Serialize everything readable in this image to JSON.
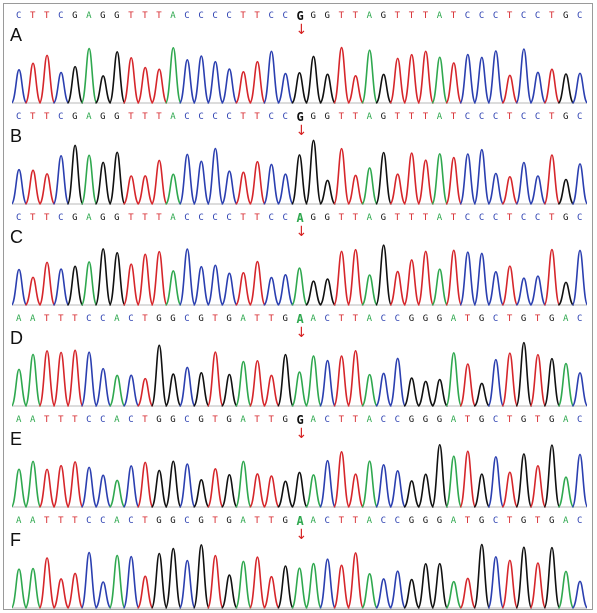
{
  "colors": {
    "A": "#2fa84f",
    "C": "#2b3fb0",
    "G": "#111111",
    "T": "#d6262b",
    "arrow": "#d62020",
    "baseline": "#b9b9b9"
  },
  "arrow_icon": "down-arrow",
  "arrow_glyph": "↓",
  "panels": [
    {
      "label": "A",
      "sequence": "CTTCGAGGTTTACCCCTTCCGGGTTAGTTTATCCCTCCTGC",
      "mutation_index": 20
    },
    {
      "label": "B",
      "sequence": "CTTCGAGGTTTACCCCTTCCGGGTTAGTTTATCCCTCCTGC",
      "mutation_index": 20
    },
    {
      "label": "C",
      "sequence": "CTTCGAGGTTTACCCCTTCCAGGTTAGTTTATCCCTCCTGC",
      "mutation_index": 20
    },
    {
      "label": "D",
      "sequence": "AATTTCCACTGGCGTGATTGAACTTACCGGGATGCTGTGAC",
      "mutation_index": 20
    },
    {
      "label": "E",
      "sequence": "AATTTCCACTGGCGTGATTGGACTTACCGGGATGCTGTGAC",
      "mutation_index": 20
    },
    {
      "label": "F",
      "sequence": "AATTTCCACTGGCGTGATTGAACTTACCGGGATGCTGTGAC",
      "mutation_index": 20
    }
  ]
}
